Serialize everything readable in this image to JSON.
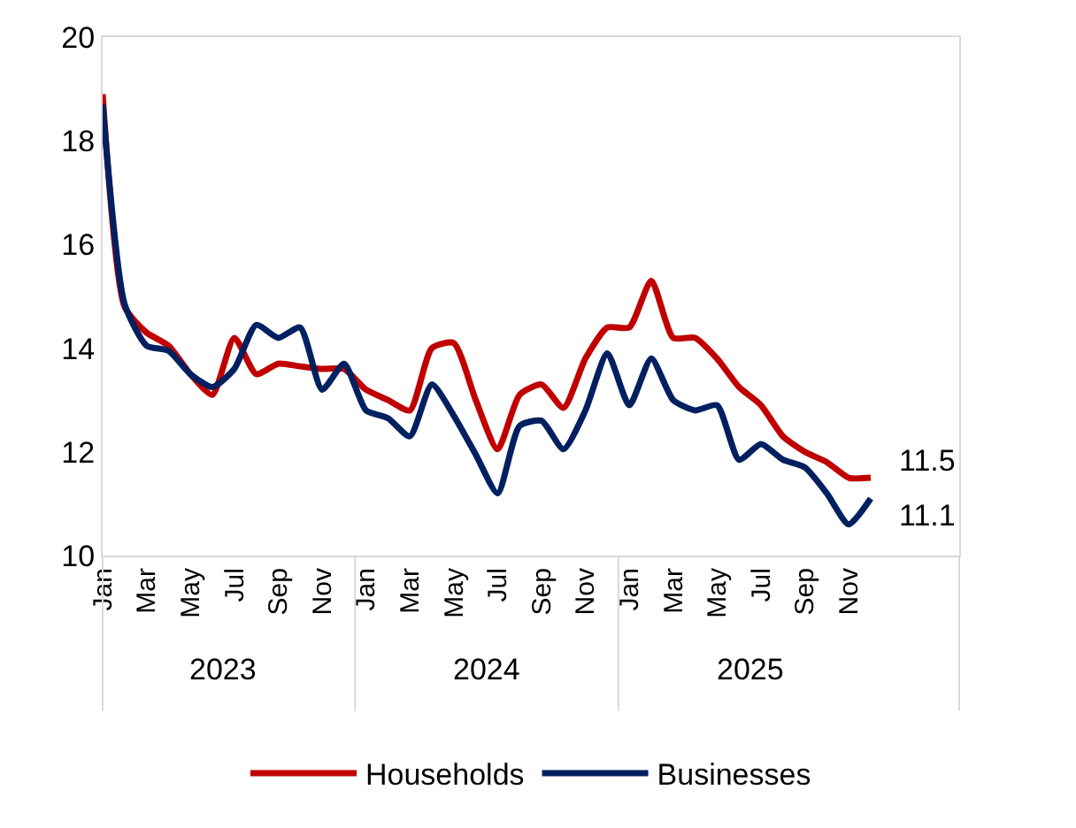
{
  "chart_data": {
    "type": "line",
    "categories": [
      "Jan",
      null,
      "Mar",
      null,
      "May",
      null,
      "Jul",
      null,
      "Sep",
      null,
      "Nov",
      null,
      "Jan",
      null,
      "Mar",
      null,
      "May",
      null,
      "Jul",
      null,
      "Sep",
      null,
      "Nov",
      null,
      "Jan",
      null,
      "Mar",
      null,
      "May",
      null,
      "Jul",
      null,
      "Sep",
      null,
      "Nov",
      null
    ],
    "series": [
      {
        "name": "Households",
        "color": "#c00000",
        "values": [
          18.9,
          14.8,
          14.3,
          14.05,
          13.5,
          13.1,
          14.2,
          13.5,
          13.7,
          13.65,
          13.6,
          13.6,
          13.2,
          13.0,
          12.8,
          14.0,
          14.1,
          13.0,
          12.05,
          13.1,
          13.3,
          12.85,
          13.8,
          14.4,
          14.4,
          15.3,
          14.2,
          14.2,
          13.8,
          13.25,
          12.9,
          12.3,
          12.0,
          11.8,
          11.5,
          11.5
        ],
        "value_labels": [
          null,
          null,
          null,
          null,
          null,
          null,
          null,
          null,
          null,
          null,
          null,
          null,
          null,
          null,
          null,
          null,
          null,
          null,
          null,
          null,
          null,
          null,
          null,
          null,
          null,
          null,
          null,
          null,
          null,
          null,
          null,
          null,
          null,
          null,
          null,
          "11.5"
        ]
      },
      {
        "name": "Businesses",
        "color": "#002060",
        "values": [
          18.7,
          14.85,
          14.05,
          13.95,
          13.5,
          13.25,
          13.6,
          14.45,
          14.2,
          14.4,
          13.2,
          13.7,
          12.8,
          12.65,
          12.3,
          13.3,
          12.7,
          11.95,
          11.2,
          12.5,
          12.6,
          12.05,
          12.8,
          13.9,
          12.9,
          13.8,
          13.0,
          12.8,
          12.9,
          11.85,
          12.15,
          11.85,
          11.7,
          11.2,
          10.6,
          11.1
        ],
        "value_labels": [
          null,
          null,
          null,
          null,
          null,
          null,
          null,
          null,
          null,
          null,
          null,
          null,
          null,
          null,
          null,
          null,
          null,
          null,
          null,
          null,
          null,
          null,
          null,
          null,
          null,
          null,
          null,
          null,
          null,
          null,
          null,
          null,
          null,
          null,
          null,
          "11.1"
        ]
      }
    ],
    "annotations": [
      "2023",
      "2024",
      "2025"
    ],
    "ylim": [
      10,
      20
    ],
    "yticks": [
      10,
      12,
      14,
      16,
      18,
      20
    ],
    "grid": false,
    "legend": "bottom",
    "marker": "none",
    "line_style": "solid"
  }
}
